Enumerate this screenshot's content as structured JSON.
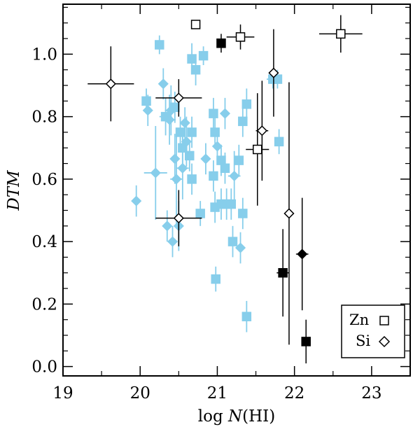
{
  "chart_data": {
    "type": "scatter",
    "xlabel_prefix": "log ",
    "xlabel_italic": "N",
    "xlabel_suffix": "(HI)",
    "ylabel": "DTM",
    "xlim": [
      19.0,
      23.5
    ],
    "ylim": [
      -0.03,
      1.16
    ],
    "xticks": [
      19,
      20,
      21,
      22,
      23
    ],
    "xtick_labels": [
      "19",
      "20",
      "21",
      "22",
      "23"
    ],
    "yticks": [
      0.0,
      0.2,
      0.4,
      0.6,
      0.8,
      1.0
    ],
    "ytick_labels": [
      "0.0",
      "0.2",
      "0.4",
      "0.6",
      "0.8",
      "1.0"
    ],
    "legend": [
      {
        "label": "Zn",
        "marker": "open-square"
      },
      {
        "label": "Si",
        "marker": "open-diamond"
      }
    ],
    "colors": {
      "literature": "#87ceeb",
      "sample": "#000000"
    },
    "series": [
      {
        "name": "Zn (literature)",
        "color": "#87ceeb",
        "marker": "square",
        "fill": true,
        "points": [
          {
            "x": 20.25,
            "y": 1.03,
            "xerr": 0.03,
            "yerr": 0.03
          },
          {
            "x": 20.08,
            "y": 0.85,
            "xerr": 0.05,
            "yerr": 0.04
          },
          {
            "x": 20.33,
            "y": 0.8,
            "xerr": 0.08,
            "yerr": 0.06
          },
          {
            "x": 20.45,
            "y": 0.83,
            "xerr": 0.05,
            "yerr": 0.05
          },
          {
            "x": 20.52,
            "y": 0.75,
            "xerr": 0.05,
            "yerr": 0.05
          },
          {
            "x": 20.55,
            "y": 0.7,
            "xerr": 0.05,
            "yerr": 0.05
          },
          {
            "x": 20.64,
            "y": 0.675,
            "xerr": 0.05,
            "yerr": 0.05
          },
          {
            "x": 20.67,
            "y": 0.75,
            "xerr": 0.05,
            "yerr": 0.05
          },
          {
            "x": 20.67,
            "y": 0.6,
            "xerr": 0.05,
            "yerr": 0.05
          },
          {
            "x": 20.67,
            "y": 0.985,
            "xerr": 0.05,
            "yerr": 0.05
          },
          {
            "x": 20.72,
            "y": 0.95,
            "xerr": 0.05,
            "yerr": 0.05
          },
          {
            "x": 20.78,
            "y": 0.49,
            "xerr": 0.04,
            "yerr": 0.04
          },
          {
            "x": 20.82,
            "y": 0.995,
            "xerr": 0.03,
            "yerr": 0.03
          },
          {
            "x": 20.95,
            "y": 0.81,
            "xerr": 0.05,
            "yerr": 0.05
          },
          {
            "x": 20.97,
            "y": 0.75,
            "xerr": 0.05,
            "yerr": 0.05
          },
          {
            "x": 20.95,
            "y": 0.61,
            "xerr": 0.05,
            "yerr": 0.05
          },
          {
            "x": 20.97,
            "y": 0.51,
            "xerr": 0.05,
            "yerr": 0.05
          },
          {
            "x": 20.98,
            "y": 0.28,
            "xerr": 0.04,
            "yerr": 0.04
          },
          {
            "x": 21.05,
            "y": 0.66,
            "xerr": 0.05,
            "yerr": 0.05
          },
          {
            "x": 21.05,
            "y": 0.52,
            "xerr": 0.05,
            "yerr": 0.05
          },
          {
            "x": 21.1,
            "y": 0.635,
            "xerr": 0.05,
            "yerr": 0.05
          },
          {
            "x": 21.12,
            "y": 0.52,
            "xerr": 0.05,
            "yerr": 0.05
          },
          {
            "x": 21.18,
            "y": 0.52,
            "xerr": 0.05,
            "yerr": 0.05
          },
          {
            "x": 21.2,
            "y": 0.4,
            "xerr": 0.05,
            "yerr": 0.05
          },
          {
            "x": 21.28,
            "y": 0.66,
            "xerr": 0.05,
            "yerr": 0.05
          },
          {
            "x": 21.33,
            "y": 0.49,
            "xerr": 0.05,
            "yerr": 0.05
          },
          {
            "x": 21.33,
            "y": 0.785,
            "xerr": 0.05,
            "yerr": 0.05
          },
          {
            "x": 21.38,
            "y": 0.84,
            "xerr": 0.05,
            "yerr": 0.05
          },
          {
            "x": 21.38,
            "y": 0.16,
            "xerr": 0.05,
            "yerr": 0.05
          },
          {
            "x": 21.72,
            "y": 0.92,
            "xerr": 0.08,
            "yerr": 0.03
          },
          {
            "x": 21.78,
            "y": 0.92,
            "xerr": 0.04,
            "yerr": 0.03
          },
          {
            "x": 21.8,
            "y": 0.72,
            "xerr": 0.05,
            "yerr": 0.04
          }
        ]
      },
      {
        "name": "Si (literature)",
        "color": "#87ceeb",
        "marker": "diamond",
        "fill": true,
        "points": [
          {
            "x": 19.95,
            "y": 0.53,
            "xerr": 0.05,
            "yerr": 0.05
          },
          {
            "x": 20.1,
            "y": 0.82,
            "xerr": 0.05,
            "yerr": 0.05
          },
          {
            "x": 20.2,
            "y": 0.62,
            "xerr": 0.15,
            "yerr": 0.15
          },
          {
            "x": 20.3,
            "y": 0.905,
            "xerr": 0.05,
            "yerr": 0.05
          },
          {
            "x": 20.35,
            "y": 0.45,
            "xerr": 0.05,
            "yerr": 0.05
          },
          {
            "x": 20.38,
            "y": 0.79,
            "xerr": 0.08,
            "yerr": 0.08
          },
          {
            "x": 20.4,
            "y": 0.82,
            "xerr": 0.08,
            "yerr": 0.08
          },
          {
            "x": 20.42,
            "y": 0.4,
            "xerr": 0.05,
            "yerr": 0.05
          },
          {
            "x": 20.45,
            "y": 0.665,
            "xerr": 0.05,
            "yerr": 0.08
          },
          {
            "x": 20.47,
            "y": 0.6,
            "xerr": 0.08,
            "yerr": 0.15
          },
          {
            "x": 20.5,
            "y": 0.45,
            "xerr": 0.05,
            "yerr": 0.08
          },
          {
            "x": 20.55,
            "y": 0.635,
            "xerr": 0.08,
            "yerr": 0.1
          },
          {
            "x": 20.58,
            "y": 0.78,
            "xerr": 0.05,
            "yerr": 0.05
          },
          {
            "x": 20.6,
            "y": 0.72,
            "xerr": 0.05,
            "yerr": 0.08
          },
          {
            "x": 20.85,
            "y": 0.665,
            "xerr": 0.05,
            "yerr": 0.05
          },
          {
            "x": 21.0,
            "y": 0.705,
            "xerr": 0.05,
            "yerr": 0.05
          },
          {
            "x": 21.1,
            "y": 0.81,
            "xerr": 0.05,
            "yerr": 0.05
          },
          {
            "x": 21.22,
            "y": 0.61,
            "xerr": 0.08,
            "yerr": 0.08
          },
          {
            "x": 21.3,
            "y": 0.38,
            "xerr": 0.05,
            "yerr": 0.05
          }
        ]
      },
      {
        "name": "Zn (this work, measurements)",
        "color": "#000000",
        "marker": "square",
        "fill": true,
        "points": [
          {
            "x": 21.05,
            "y": 1.035,
            "xerr": 0.05,
            "yerr": 0.03
          },
          {
            "x": 21.85,
            "y": 0.3,
            "xerr": 0.08,
            "yerr": 0.14
          },
          {
            "x": 22.15,
            "y": 0.08,
            "xerr": 0.03,
            "yerr": 0.07
          }
        ]
      },
      {
        "name": "Zn (this work, limits)",
        "color": "#000000",
        "marker": "square",
        "fill": false,
        "points": [
          {
            "x": 20.72,
            "y": 1.095,
            "xerr": 0.05,
            "yerr": 0.01
          },
          {
            "x": 21.3,
            "y": 1.055,
            "xerr": 0.18,
            "yerr": 0.04
          },
          {
            "x": 21.52,
            "y": 0.695,
            "xerr": 0.15,
            "yerr": 0.18
          },
          {
            "x": 22.6,
            "y": 1.065,
            "xerr": 0.28,
            "yerr": 0.06
          }
        ]
      },
      {
        "name": "Si (this work, measurements)",
        "color": "#000000",
        "marker": "diamond",
        "fill": true,
        "points": [
          {
            "x": 22.1,
            "y": 0.36,
            "xerr": 0.08,
            "yerr": 0.18
          }
        ]
      },
      {
        "name": "Si (this work, limits)",
        "color": "#000000",
        "marker": "diamond",
        "fill": false,
        "points": [
          {
            "x": 19.62,
            "y": 0.905,
            "xerr": 0.3,
            "yerr": 0.12
          },
          {
            "x": 20.5,
            "y": 0.86,
            "xerr": 0.3,
            "yerr": 0.06
          },
          {
            "x": 20.5,
            "y": 0.475,
            "xerr": 0.3,
            "yerr": 0.09
          },
          {
            "x": 21.58,
            "y": 0.755,
            "xerr": 0.08,
            "yerr": 0.16
          },
          {
            "x": 21.73,
            "y": 0.94,
            "xerr": 0.05,
            "yerr": 0.14
          },
          {
            "x": 21.93,
            "y": 0.49,
            "xerr": 0.05,
            "yerr": 0.42
          }
        ]
      }
    ]
  }
}
